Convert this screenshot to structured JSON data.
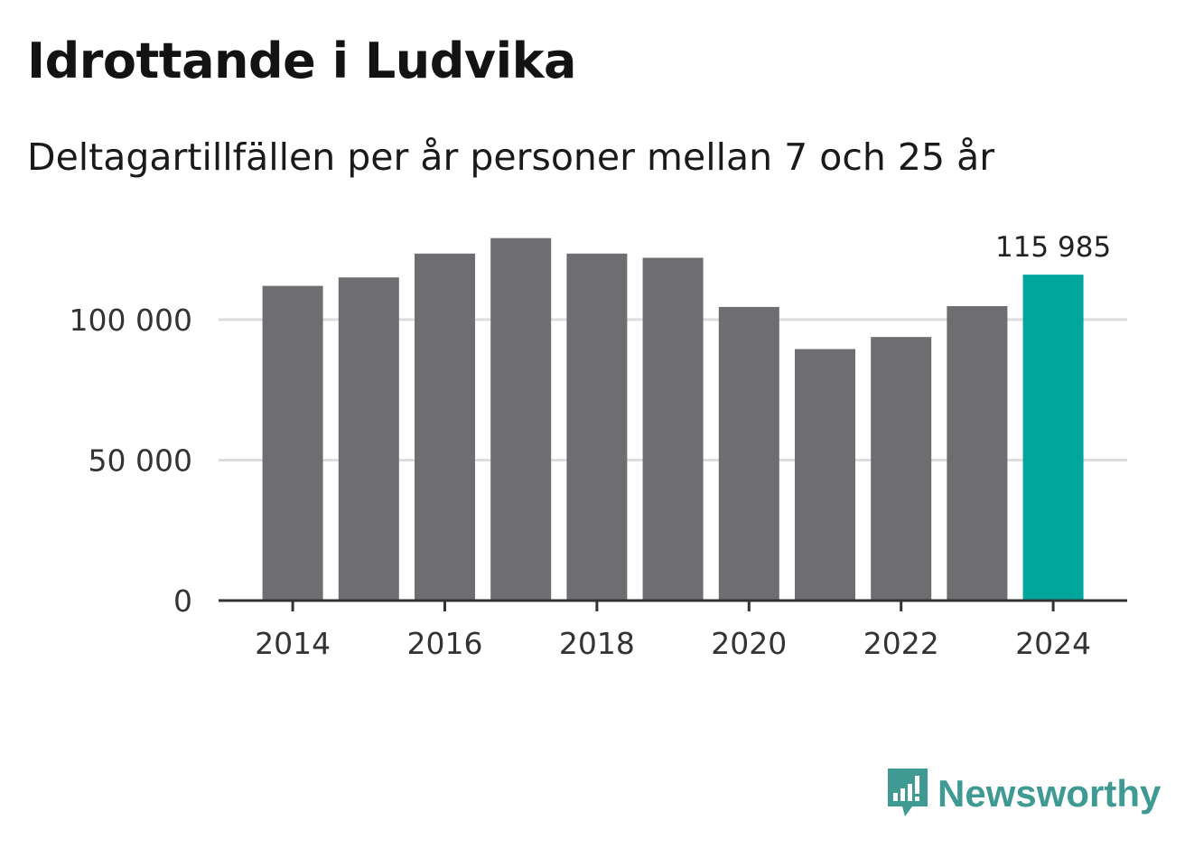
{
  "title": "Idrottande i Ludvika",
  "subtitle": "Deltagartillfällen per år personer mellan 7 och 25 år",
  "brand": {
    "name": "Newsworthy",
    "logo_icon": "newsworthy-logo-icon",
    "color": "#3e9a93"
  },
  "colors": {
    "bar": "#6e6d72",
    "highlight": "#00a59b",
    "grid": "#dddddd",
    "axis": "#333333"
  },
  "chart_data": {
    "type": "bar",
    "categories": [
      "2014",
      "2015",
      "2016",
      "2017",
      "2018",
      "2019",
      "2020",
      "2021",
      "2022",
      "2023",
      "2024"
    ],
    "values": [
      112000,
      115000,
      123500,
      129000,
      123500,
      122000,
      104500,
      89500,
      93800,
      104800,
      115985
    ],
    "highlight_index": 10,
    "data_labels": [
      {
        "index": 10,
        "text": "115 985"
      }
    ],
    "x_tick_labels": [
      "2014",
      "2016",
      "2018",
      "2020",
      "2022",
      "2024"
    ],
    "y_ticks": [
      0,
      50000,
      100000
    ],
    "y_tick_labels": [
      "0",
      "50 000",
      "100 000"
    ],
    "ylim": [
      0,
      135000
    ],
    "grid": true,
    "xlabel": "",
    "ylabel": ""
  }
}
